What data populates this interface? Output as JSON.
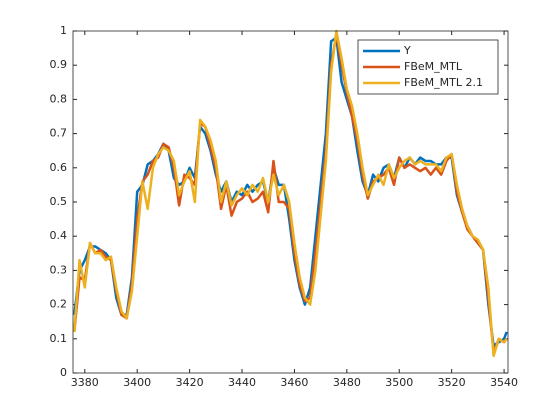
{
  "chart_data": {
    "type": "line",
    "x": [
      3376,
      3378,
      3380,
      3382,
      3384,
      3386,
      3388,
      3390,
      3392,
      3394,
      3396,
      3398,
      3400,
      3402,
      3404,
      3406,
      3408,
      3410,
      3412,
      3414,
      3416,
      3418,
      3420,
      3422,
      3424,
      3426,
      3428,
      3430,
      3432,
      3434,
      3436,
      3438,
      3440,
      3442,
      3444,
      3446,
      3448,
      3450,
      3452,
      3454,
      3456,
      3458,
      3460,
      3462,
      3464,
      3466,
      3468,
      3470,
      3472,
      3474,
      3476,
      3478,
      3480,
      3482,
      3484,
      3486,
      3488,
      3490,
      3492,
      3494,
      3496,
      3498,
      3500,
      3502,
      3504,
      3506,
      3508,
      3510,
      3512,
      3514,
      3516,
      3518,
      3520,
      3522,
      3524,
      3526,
      3528,
      3530,
      3532,
      3534,
      3536,
      3538,
      3540,
      3541
    ],
    "series": [
      {
        "name": "Y",
        "color": "#0072bd",
        "values": [
          0.17,
          0.3,
          0.33,
          0.37,
          0.37,
          0.36,
          0.35,
          0.33,
          0.22,
          0.17,
          0.17,
          0.28,
          0.53,
          0.55,
          0.61,
          0.62,
          0.64,
          0.67,
          0.65,
          0.57,
          0.55,
          0.56,
          0.6,
          0.57,
          0.72,
          0.7,
          0.65,
          0.58,
          0.53,
          0.56,
          0.5,
          0.53,
          0.52,
          0.55,
          0.53,
          0.55,
          0.56,
          0.5,
          0.6,
          0.55,
          0.55,
          0.45,
          0.33,
          0.25,
          0.2,
          0.25,
          0.4,
          0.55,
          0.7,
          0.97,
          0.98,
          0.85,
          0.8,
          0.75,
          0.65,
          0.56,
          0.52,
          0.58,
          0.56,
          0.6,
          0.61,
          0.57,
          0.63,
          0.6,
          0.63,
          0.61,
          0.63,
          0.62,
          0.62,
          0.61,
          0.61,
          0.63,
          0.63,
          0.52,
          0.47,
          0.43,
          0.4,
          0.38,
          0.36,
          0.2,
          0.08,
          0.09,
          0.1,
          0.12
        ]
      },
      {
        "name": "FBeM_MTL",
        "color": "#d95319",
        "values": [
          0.12,
          0.28,
          0.27,
          0.38,
          0.35,
          0.36,
          0.34,
          0.33,
          0.24,
          0.17,
          0.16,
          0.26,
          0.45,
          0.56,
          0.58,
          0.62,
          0.63,
          0.67,
          0.66,
          0.6,
          0.49,
          0.58,
          0.57,
          0.55,
          0.73,
          0.72,
          0.66,
          0.6,
          0.48,
          0.55,
          0.46,
          0.5,
          0.51,
          0.53,
          0.5,
          0.51,
          0.53,
          0.47,
          0.62,
          0.5,
          0.5,
          0.48,
          0.35,
          0.26,
          0.21,
          0.22,
          0.35,
          0.5,
          0.65,
          0.9,
          0.99,
          0.9,
          0.82,
          0.75,
          0.68,
          0.58,
          0.51,
          0.56,
          0.57,
          0.58,
          0.6,
          0.55,
          0.63,
          0.6,
          0.61,
          0.6,
          0.59,
          0.6,
          0.58,
          0.6,
          0.58,
          0.62,
          0.64,
          0.53,
          0.47,
          0.42,
          0.4,
          0.38,
          0.36,
          0.22,
          0.06,
          0.1,
          0.09,
          0.1
        ]
      },
      {
        "name": "FBeM_MTL 2.1",
        "color": "#edb120",
        "values": [
          0.12,
          0.33,
          0.25,
          0.38,
          0.35,
          0.35,
          0.33,
          0.34,
          0.25,
          0.18,
          0.16,
          0.24,
          0.4,
          0.56,
          0.48,
          0.6,
          0.64,
          0.66,
          0.65,
          0.62,
          0.52,
          0.56,
          0.59,
          0.5,
          0.74,
          0.72,
          0.68,
          0.62,
          0.5,
          0.56,
          0.49,
          0.52,
          0.54,
          0.52,
          0.55,
          0.53,
          0.57,
          0.5,
          0.58,
          0.52,
          0.55,
          0.5,
          0.38,
          0.28,
          0.22,
          0.2,
          0.3,
          0.46,
          0.62,
          0.88,
          1.0,
          0.92,
          0.83,
          0.78,
          0.7,
          0.6,
          0.52,
          0.55,
          0.58,
          0.55,
          0.61,
          0.57,
          0.6,
          0.62,
          0.63,
          0.61,
          0.62,
          0.61,
          0.61,
          0.61,
          0.59,
          0.63,
          0.64,
          0.55,
          0.48,
          0.43,
          0.4,
          0.39,
          0.36,
          0.25,
          0.05,
          0.1,
          0.09,
          0.1
        ]
      }
    ],
    "xlim": [
      3375.5,
      3541.5
    ],
    "xticks": [
      3380,
      3400,
      3420,
      3440,
      3460,
      3480,
      3500,
      3520,
      3540
    ],
    "ylim": [
      0,
      1
    ],
    "yticks": [
      0,
      0.1,
      0.2,
      0.3,
      0.4,
      0.5,
      0.6,
      0.7,
      0.8,
      0.9,
      1
    ],
    "grid": false,
    "legend": "northeast"
  }
}
